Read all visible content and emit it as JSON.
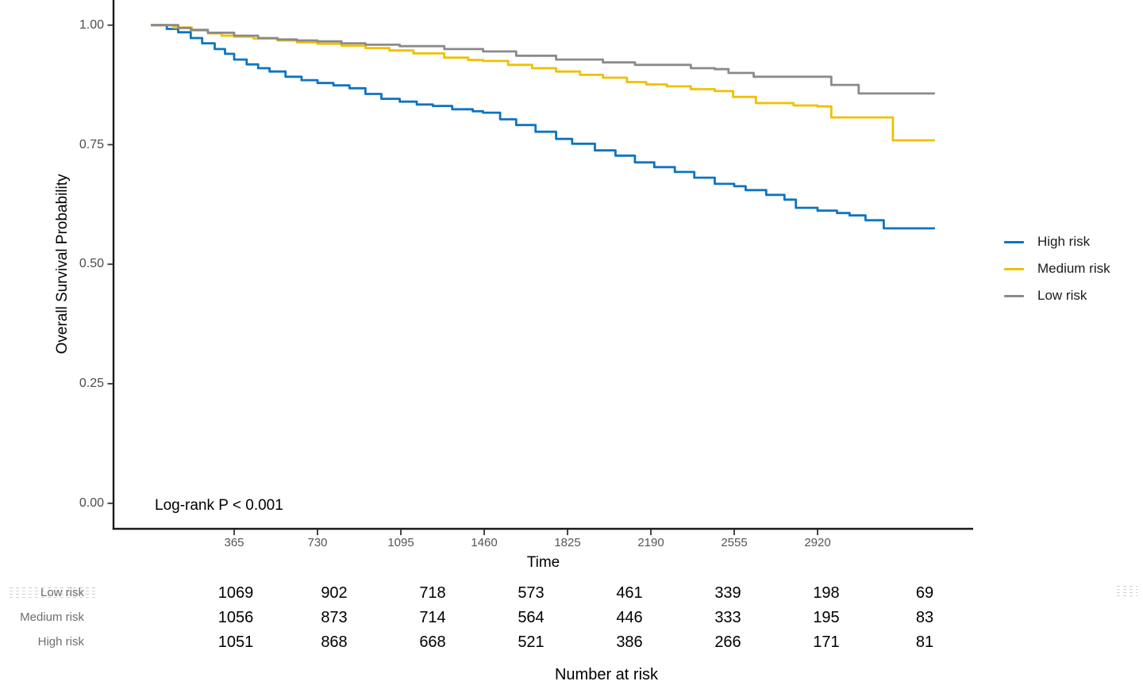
{
  "figure": {
    "ylabel": "Overall Survival Probability",
    "xlabel": "Time",
    "annotation": "Log-rank P < 0.001"
  },
  "legend": {
    "items": [
      {
        "label": "High risk",
        "color": "#0e74c2"
      },
      {
        "label": "Medium risk",
        "color": "#efc000"
      },
      {
        "label": "Low risk",
        "color": "#8a8a8a"
      }
    ]
  },
  "chart_data": {
    "type": "line",
    "subtype": "kaplan-meier-step",
    "title": "",
    "xlabel": "Time",
    "ylabel": "Overall Survival Probability",
    "xlim": [
      0,
      3600
    ],
    "ylim": [
      0.0,
      1.0
    ],
    "grid": false,
    "legend_position": "right",
    "x_ticks": [
      365,
      730,
      1095,
      1460,
      1825,
      2190,
      2555,
      2920
    ],
    "x_tick_labels": [
      "365",
      "730",
      "1095",
      "1460",
      "1825",
      "2190",
      "2555",
      "2920"
    ],
    "y_ticks": [
      1.0,
      0.75,
      0.5,
      0.25,
      0.0
    ],
    "y_tick_labels": [
      "1.00",
      "0.75",
      "0.50",
      "0.25",
      "0.00"
    ],
    "annotation": "Log-rank P < 0.001",
    "series": [
      {
        "name": "High risk",
        "color": "#0e74c2",
        "points": [
          [
            0,
            1.0
          ],
          [
            70,
            0.992
          ],
          [
            120,
            0.985
          ],
          [
            175,
            0.973
          ],
          [
            225,
            0.962
          ],
          [
            280,
            0.95
          ],
          [
            325,
            0.94
          ],
          [
            365,
            0.928
          ],
          [
            420,
            0.918
          ],
          [
            470,
            0.91
          ],
          [
            520,
            0.903
          ],
          [
            590,
            0.892
          ],
          [
            660,
            0.885
          ],
          [
            730,
            0.879
          ],
          [
            800,
            0.874
          ],
          [
            870,
            0.868
          ],
          [
            940,
            0.856
          ],
          [
            1010,
            0.846
          ],
          [
            1090,
            0.84
          ],
          [
            1165,
            0.834
          ],
          [
            1235,
            0.831
          ],
          [
            1320,
            0.824
          ],
          [
            1410,
            0.82
          ],
          [
            1455,
            0.817
          ],
          [
            1530,
            0.803
          ],
          [
            1600,
            0.791
          ],
          [
            1685,
            0.777
          ],
          [
            1775,
            0.762
          ],
          [
            1845,
            0.752
          ],
          [
            1945,
            0.738
          ],
          [
            2035,
            0.727
          ],
          [
            2120,
            0.713
          ],
          [
            2205,
            0.703
          ],
          [
            2295,
            0.693
          ],
          [
            2380,
            0.681
          ],
          [
            2470,
            0.668
          ],
          [
            2555,
            0.663
          ],
          [
            2605,
            0.655
          ],
          [
            2695,
            0.645
          ],
          [
            2775,
            0.635
          ],
          [
            2825,
            0.618
          ],
          [
            2920,
            0.612
          ],
          [
            3005,
            0.607
          ],
          [
            3060,
            0.602
          ],
          [
            3130,
            0.592
          ],
          [
            3210,
            0.575
          ],
          [
            3434,
            0.575
          ]
        ]
      },
      {
        "name": "Medium risk",
        "color": "#efc000",
        "points": [
          [
            0,
            1.0
          ],
          [
            100,
            0.995
          ],
          [
            180,
            0.989
          ],
          [
            250,
            0.983
          ],
          [
            310,
            0.978
          ],
          [
            365,
            0.976
          ],
          [
            450,
            0.972
          ],
          [
            555,
            0.968
          ],
          [
            640,
            0.964
          ],
          [
            730,
            0.961
          ],
          [
            835,
            0.957
          ],
          [
            940,
            0.952
          ],
          [
            1045,
            0.947
          ],
          [
            1150,
            0.941
          ],
          [
            1285,
            0.932
          ],
          [
            1390,
            0.927
          ],
          [
            1455,
            0.925
          ],
          [
            1565,
            0.917
          ],
          [
            1670,
            0.91
          ],
          [
            1775,
            0.903
          ],
          [
            1880,
            0.896
          ],
          [
            1980,
            0.89
          ],
          [
            2085,
            0.881
          ],
          [
            2170,
            0.876
          ],
          [
            2260,
            0.872
          ],
          [
            2365,
            0.866
          ],
          [
            2470,
            0.862
          ],
          [
            2550,
            0.85
          ],
          [
            2650,
            0.837
          ],
          [
            2815,
            0.832
          ],
          [
            2920,
            0.83
          ],
          [
            2980,
            0.807
          ],
          [
            3250,
            0.759
          ],
          [
            3434,
            0.759
          ]
        ]
      },
      {
        "name": "Low risk",
        "color": "#8a8a8a",
        "points": [
          [
            0,
            1.0
          ],
          [
            120,
            0.994
          ],
          [
            175,
            0.99
          ],
          [
            250,
            0.984
          ],
          [
            365,
            0.978
          ],
          [
            470,
            0.973
          ],
          [
            555,
            0.97
          ],
          [
            640,
            0.968
          ],
          [
            730,
            0.966
          ],
          [
            835,
            0.962
          ],
          [
            940,
            0.959
          ],
          [
            1090,
            0.956
          ],
          [
            1285,
            0.95
          ],
          [
            1455,
            0.945
          ],
          [
            1600,
            0.936
          ],
          [
            1775,
            0.928
          ],
          [
            1980,
            0.922
          ],
          [
            2120,
            0.917
          ],
          [
            2365,
            0.91
          ],
          [
            2470,
            0.908
          ],
          [
            2530,
            0.9
          ],
          [
            2640,
            0.892
          ],
          [
            2980,
            0.875
          ],
          [
            3100,
            0.857
          ],
          [
            3434,
            0.857
          ]
        ]
      }
    ]
  },
  "risk_table": {
    "title": "Number at risk",
    "time_points": [
      365,
      730,
      1095,
      1460,
      1825,
      2190,
      2555,
      2920
    ],
    "rows": [
      {
        "label": "Low risk",
        "counts": [
          "1069",
          "902",
          "718",
          "573",
          "461",
          "339",
          "198",
          "69"
        ]
      },
      {
        "label": "Medium risk",
        "counts": [
          "1056",
          "873",
          "714",
          "564",
          "446",
          "333",
          "195",
          "83"
        ]
      },
      {
        "label": "High risk",
        "counts": [
          "1051",
          "868",
          "668",
          "521",
          "386",
          "266",
          "171",
          "81"
        ]
      }
    ]
  }
}
